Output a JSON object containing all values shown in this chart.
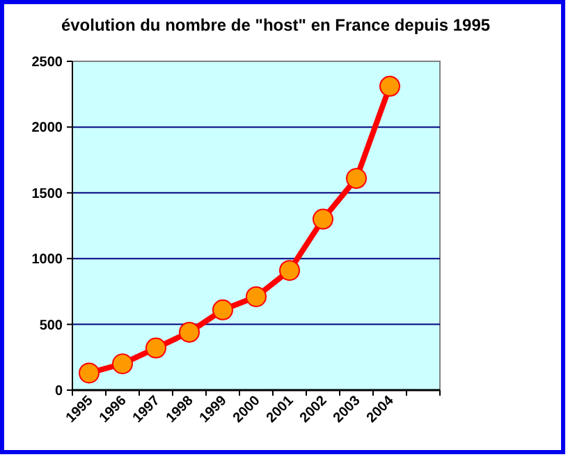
{
  "chart_data": {
    "type": "line",
    "title": "évolution du nombre de \"host\" en France depuis 1995",
    "categories": [
      "1995",
      "1996",
      "1997",
      "1998",
      "1999",
      "2000",
      "2001",
      "2002",
      "2003",
      "2004",
      null
    ],
    "series": [
      {
        "color": "#ff0000",
        "colors": [
          "#ff9900",
          "#ff9900",
          "#ff9900",
          "#ff9900",
          "#ff9900",
          "#ff9900",
          "#ff9900",
          "#ff9900",
          "#ff9900",
          "#ff9900",
          null
        ],
        "values": [
          130,
          200,
          320,
          440,
          610,
          710,
          910,
          1300,
          1610,
          2310,
          null
        ]
      }
    ],
    "ylim": [
      0,
      2500
    ],
    "yticks": [
      0,
      500,
      1000,
      1500,
      2000,
      2500
    ],
    "grid": "y",
    "marker": "circle"
  }
}
